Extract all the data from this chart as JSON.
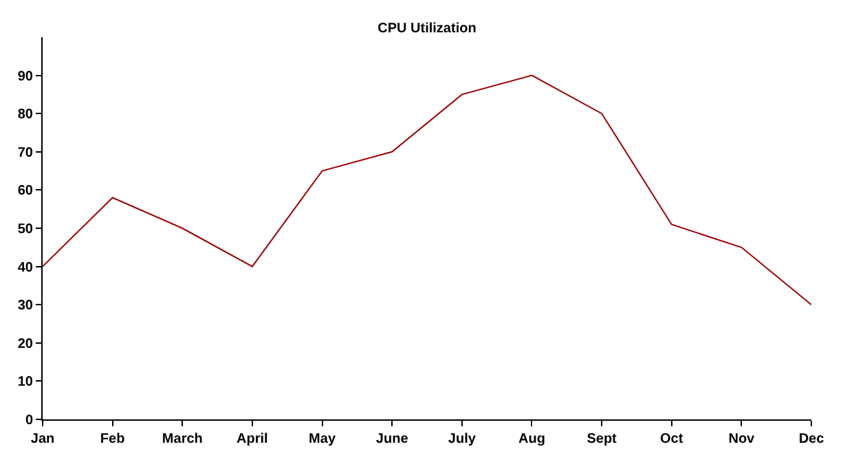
{
  "chart_data": {
    "type": "line",
    "title": "CPU Utilization",
    "categories": [
      "Jan",
      "Feb",
      "March",
      "April",
      "May",
      "June",
      "July",
      "Aug",
      "Sept",
      "Oct",
      "Nov",
      "Dec"
    ],
    "series": [
      {
        "color": "#990000",
        "values": [
          40,
          58,
          50,
          40,
          65,
          70,
          85,
          90,
          80,
          51,
          45,
          30
        ]
      }
    ],
    "ylim": [
      0,
      100
    ],
    "yticks": [
      0,
      10,
      20,
      30,
      40,
      50,
      60,
      70,
      80,
      90
    ],
    "marker": "none",
    "line_style": "solid"
  }
}
